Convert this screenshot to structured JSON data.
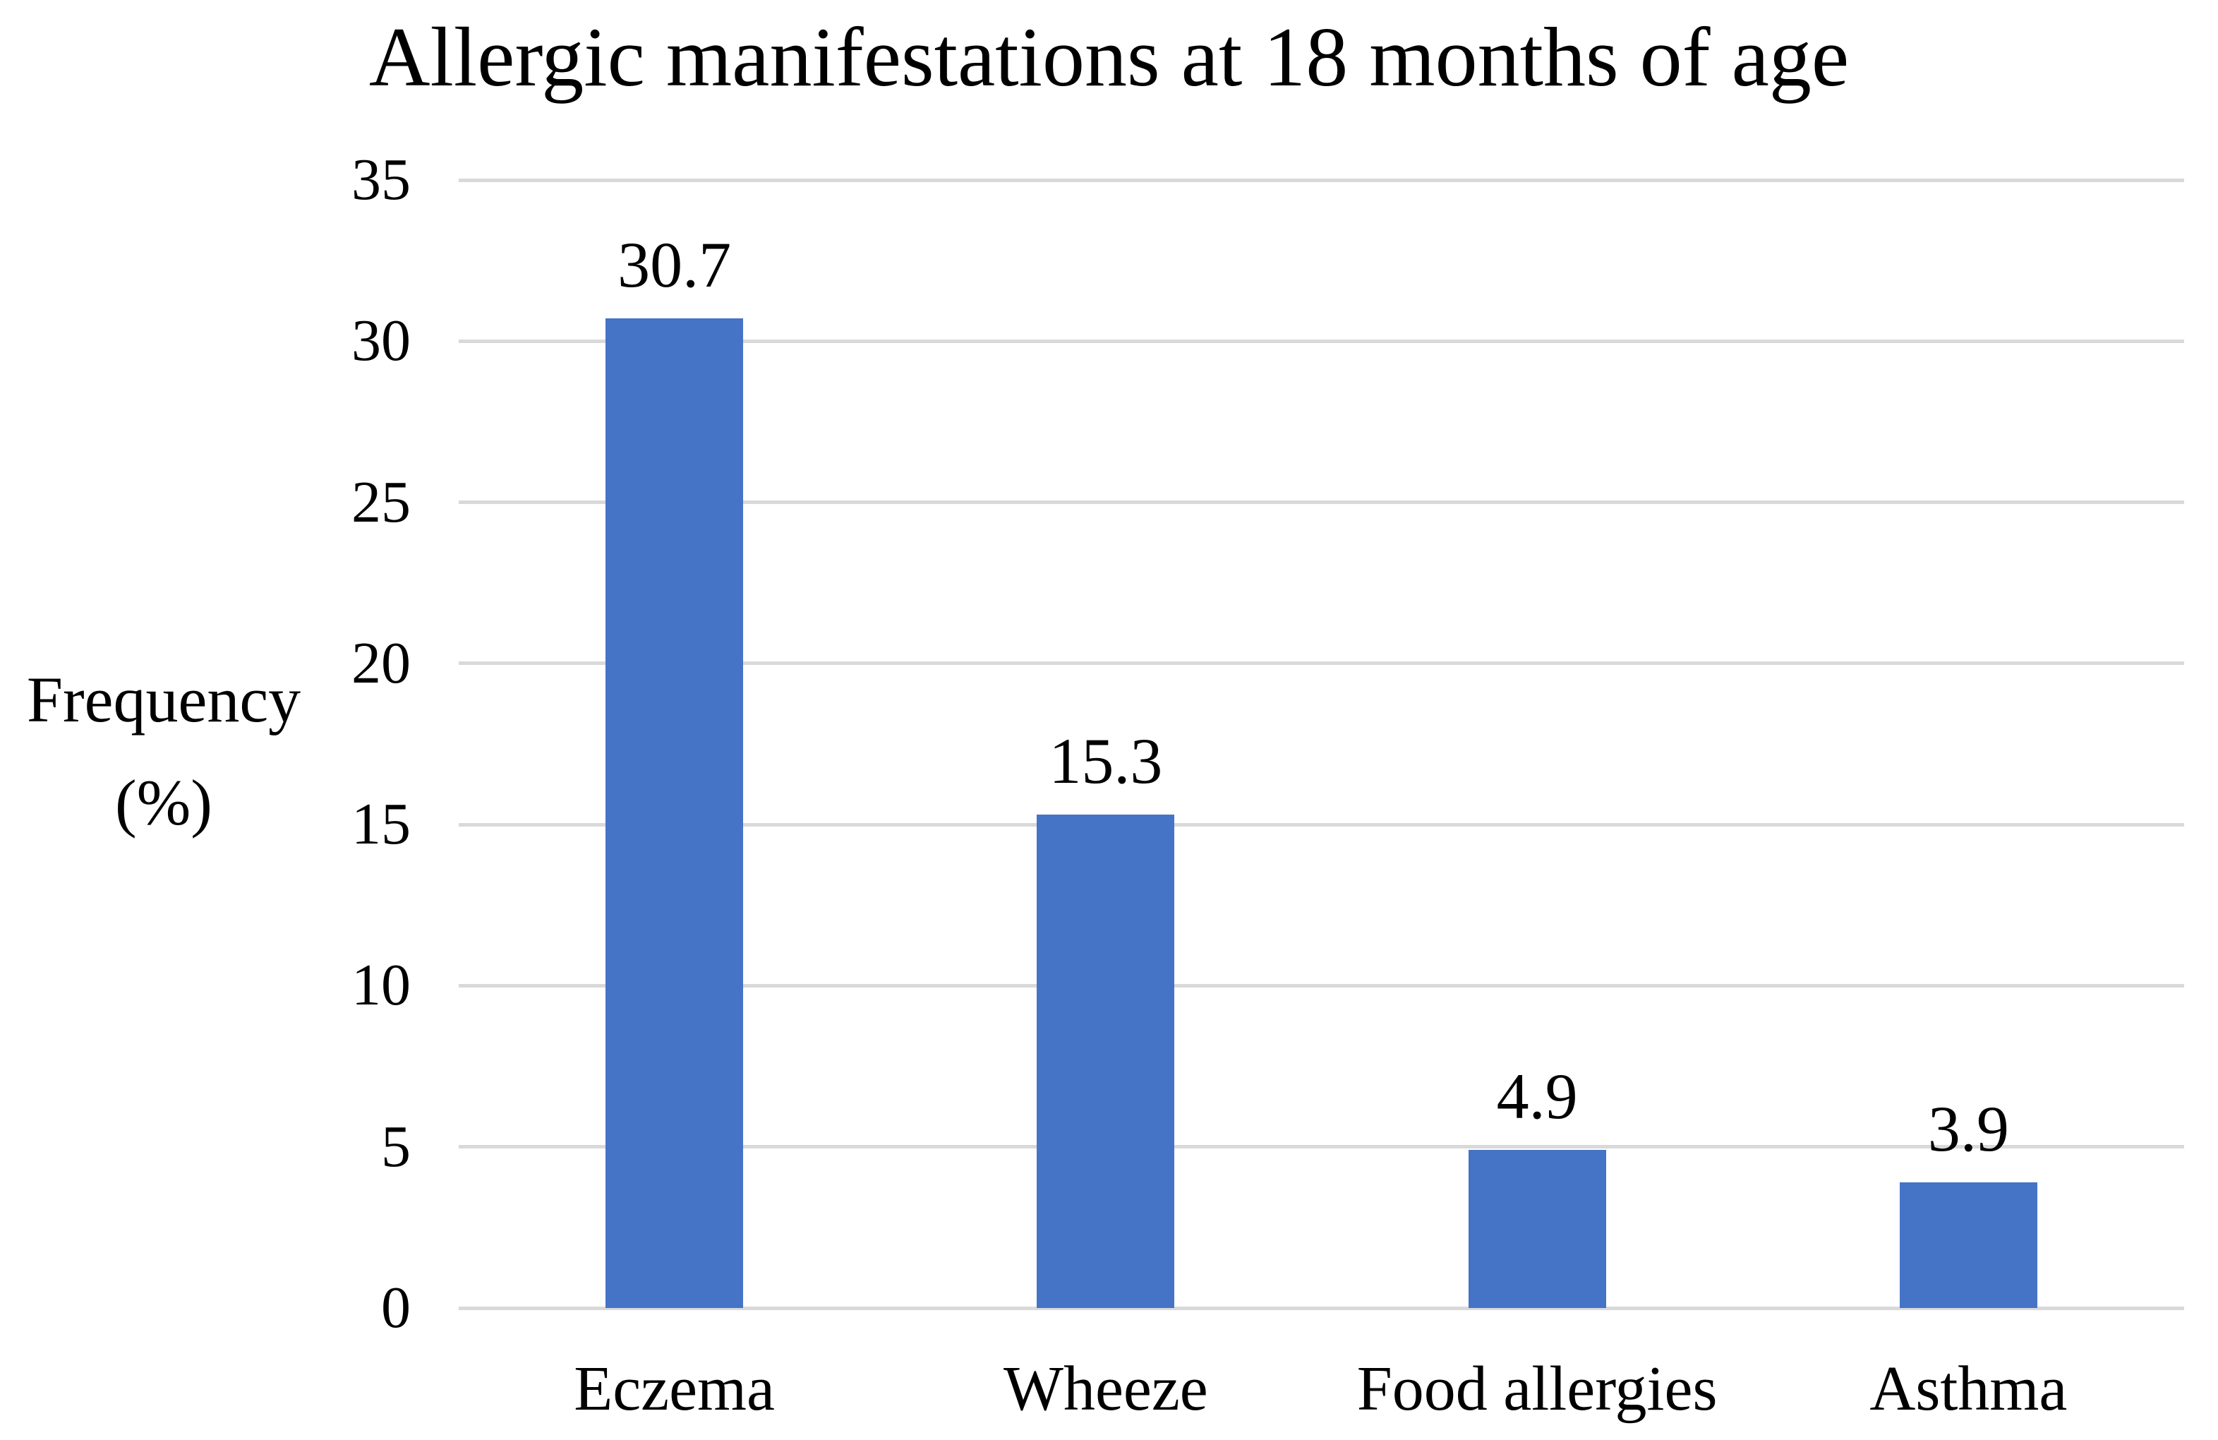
{
  "chart_data": {
    "type": "bar",
    "title": "Allergic manifestations at 18 months of age",
    "categories": [
      "Eczema",
      "Wheeze",
      "Food allergies",
      "Asthma"
    ],
    "values": [
      30.7,
      15.3,
      4.9,
      3.9
    ],
    "data_labels": [
      "30.7",
      "15.3",
      "4.9",
      "3.9"
    ],
    "ylabel_lines": [
      "Frequency",
      "(%)"
    ],
    "xlabel": "",
    "ylim": [
      0,
      35
    ],
    "yticks": [
      35,
      30,
      25,
      20,
      15,
      10,
      5,
      0
    ],
    "grid": "horizontal",
    "legend": "none",
    "bar_color": "#4573C6",
    "gridline_color": "#D9D9D9",
    "text_color": "#000000",
    "background_color": "#FFFFFF"
  }
}
